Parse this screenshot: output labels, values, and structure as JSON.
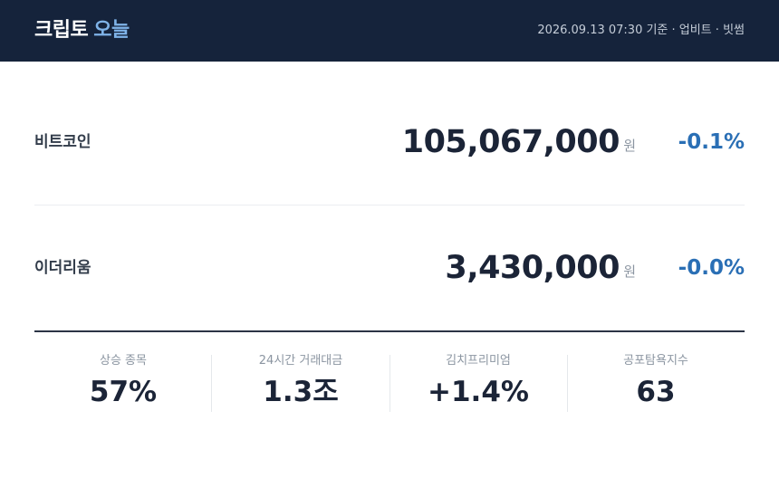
{
  "header": {
    "title": "크립토",
    "title_accent": "오늘",
    "meta": "2026.09.13 07:30 기준 · 업비트 · 빗썸"
  },
  "rows": [
    {
      "name": "비트코인",
      "price": "105,067,000",
      "unit": "원",
      "change": "-0.1%"
    },
    {
      "name": "이더리움",
      "price": "3,430,000",
      "unit": "원",
      "change": "-0.0%"
    }
  ],
  "stats": [
    {
      "label": "상승 종목",
      "value": "57%"
    },
    {
      "label": "24시간 거래대금",
      "value": "1.3조"
    },
    {
      "label": "김치프리미엄",
      "value": "+1.4%"
    },
    {
      "label": "공포탐욕지수",
      "value": "63"
    }
  ]
}
